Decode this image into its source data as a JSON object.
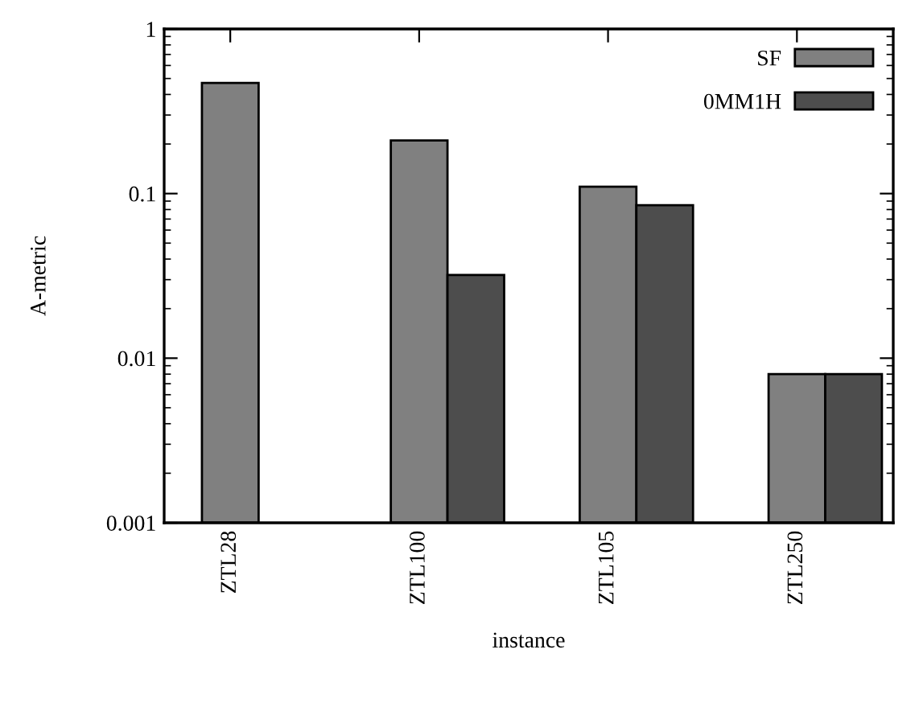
{
  "chart_data": {
    "type": "bar",
    "xlabel": "instance",
    "ylabel": "A-metric",
    "categories": [
      "ZTL28",
      "ZTL100",
      "ZTL105",
      "ZTL250"
    ],
    "series": [
      {
        "name": "SF",
        "color": "#808080",
        "values": [
          0.47,
          0.21,
          0.11,
          0.008
        ]
      },
      {
        "name": "0MM1H",
        "color": "#4d4d4d",
        "values": [
          null,
          0.032,
          0.085,
          0.008
        ]
      }
    ],
    "log": "y",
    "ylim": [
      0.001,
      1
    ],
    "yticks": [
      0.001,
      0.01,
      0.1,
      1
    ],
    "grid": false,
    "legend": "top right"
  }
}
